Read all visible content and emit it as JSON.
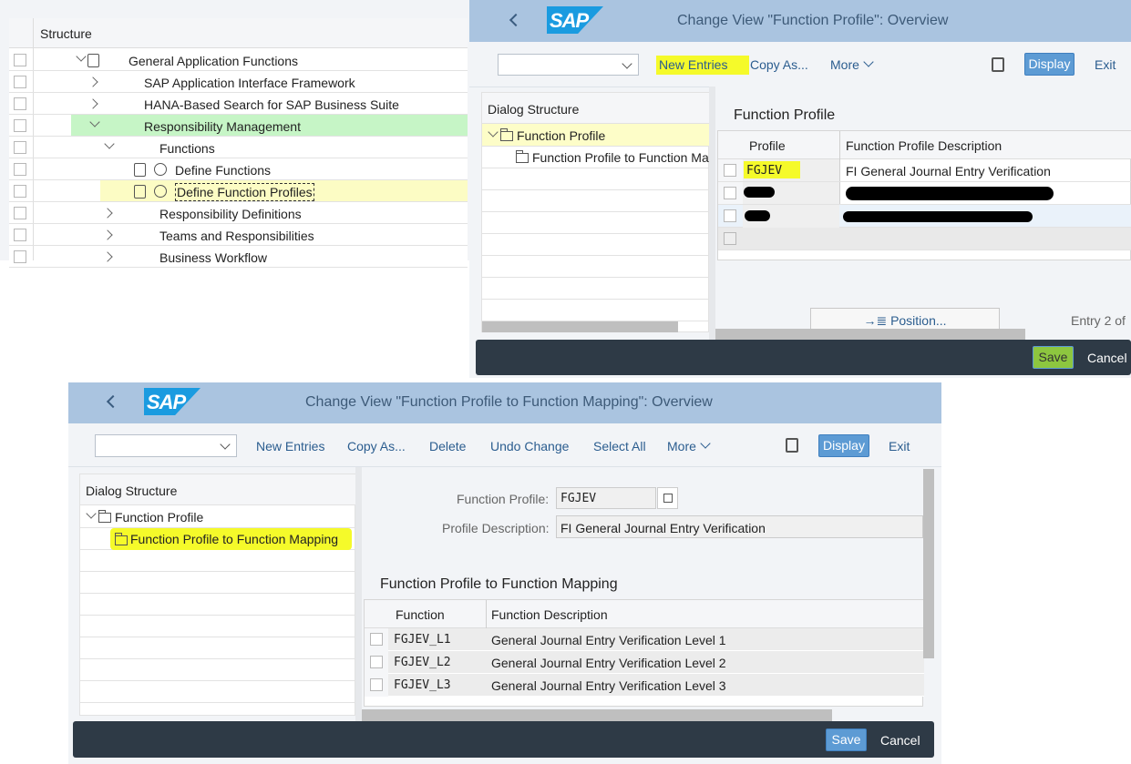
{
  "tree_panel": {
    "header": "Structure",
    "rows": [
      {
        "label": "General Application Functions",
        "expanded": true,
        "icon": "activity-document-icon"
      },
      {
        "label": "SAP Application Interface Framework",
        "expanded": false
      },
      {
        "label": "HANA-Based Search for SAP Business Suite",
        "expanded": false
      },
      {
        "label": "Responsibility Management",
        "expanded": true,
        "highlight": "#c6f5c6"
      },
      {
        "label": "Functions",
        "expanded": true
      },
      {
        "label": "Define Functions",
        "icon": "activity-document-icon",
        "clock": "clock-icon"
      },
      {
        "label": "Define Function Profiles",
        "icon": "activity-document-icon",
        "clock": "clock-icon",
        "highlight": "#fcfcc4"
      },
      {
        "label": "Responsibility Definitions",
        "expanded": false
      },
      {
        "label": "Teams and Responsibilities",
        "expanded": false
      },
      {
        "label": "Business Workflow",
        "expanded": false
      }
    ]
  },
  "panel1": {
    "logo": "SAP",
    "title": "Change View \"Function Profile\": Overview",
    "toolbar": {
      "new_entries": "New Entries",
      "copy_as": "Copy As...",
      "more": "More",
      "display": "Display",
      "exit": "Exit"
    },
    "dialog_structure": {
      "header": "Dialog Structure",
      "items": [
        "Function Profile",
        "Function Profile to Function Mapping"
      ]
    },
    "section_title": "Function Profile",
    "table": {
      "columns": [
        "Profile",
        "Function Profile Description"
      ],
      "rows": [
        {
          "profile": "FGJEV",
          "description": "FI General Journal Entry Verification"
        }
      ]
    },
    "position_button": "Position...",
    "entry_text": "Entry 2 of",
    "footer": {
      "save": "Save",
      "cancel": "Cancel"
    }
  },
  "panel2": {
    "logo": "SAP",
    "title": "Change View \"Function Profile to Function Mapping\": Overview",
    "toolbar": {
      "new_entries": "New Entries",
      "copy_as": "Copy As...",
      "delete": "Delete",
      "undo_change": "Undo Change",
      "select_all": "Select All",
      "more": "More",
      "display": "Display",
      "exit": "Exit"
    },
    "dialog_structure": {
      "header": "Dialog Structure",
      "items": [
        "Function Profile",
        "Function Profile to Function Mapping"
      ]
    },
    "form": {
      "profile_label": "Function Profile:",
      "profile_value": "FGJEV",
      "desc_label": "Profile Description:",
      "desc_value": "FI General Journal Entry Verification"
    },
    "section_title": "Function Profile to Function Mapping",
    "table": {
      "columns": [
        "Function",
        "Function Description"
      ],
      "rows": [
        {
          "function": "FGJEV_L1",
          "description": "General Journal Entry Verification Level 1"
        },
        {
          "function": "FGJEV_L2",
          "description": "General Journal Entry Verification Level 2"
        },
        {
          "function": "FGJEV_L3",
          "description": "General Journal Entry Verification Level 3"
        }
      ]
    },
    "footer": {
      "save": "Save",
      "cancel": "Cancel"
    }
  },
  "colors": {
    "header_blue": "#aac4e0",
    "button_blue": "#5d9bd4",
    "footer_dark": "#2e3a46",
    "marker_yellow": "#f5fa2a",
    "selected_green": "#c6f5c6"
  }
}
